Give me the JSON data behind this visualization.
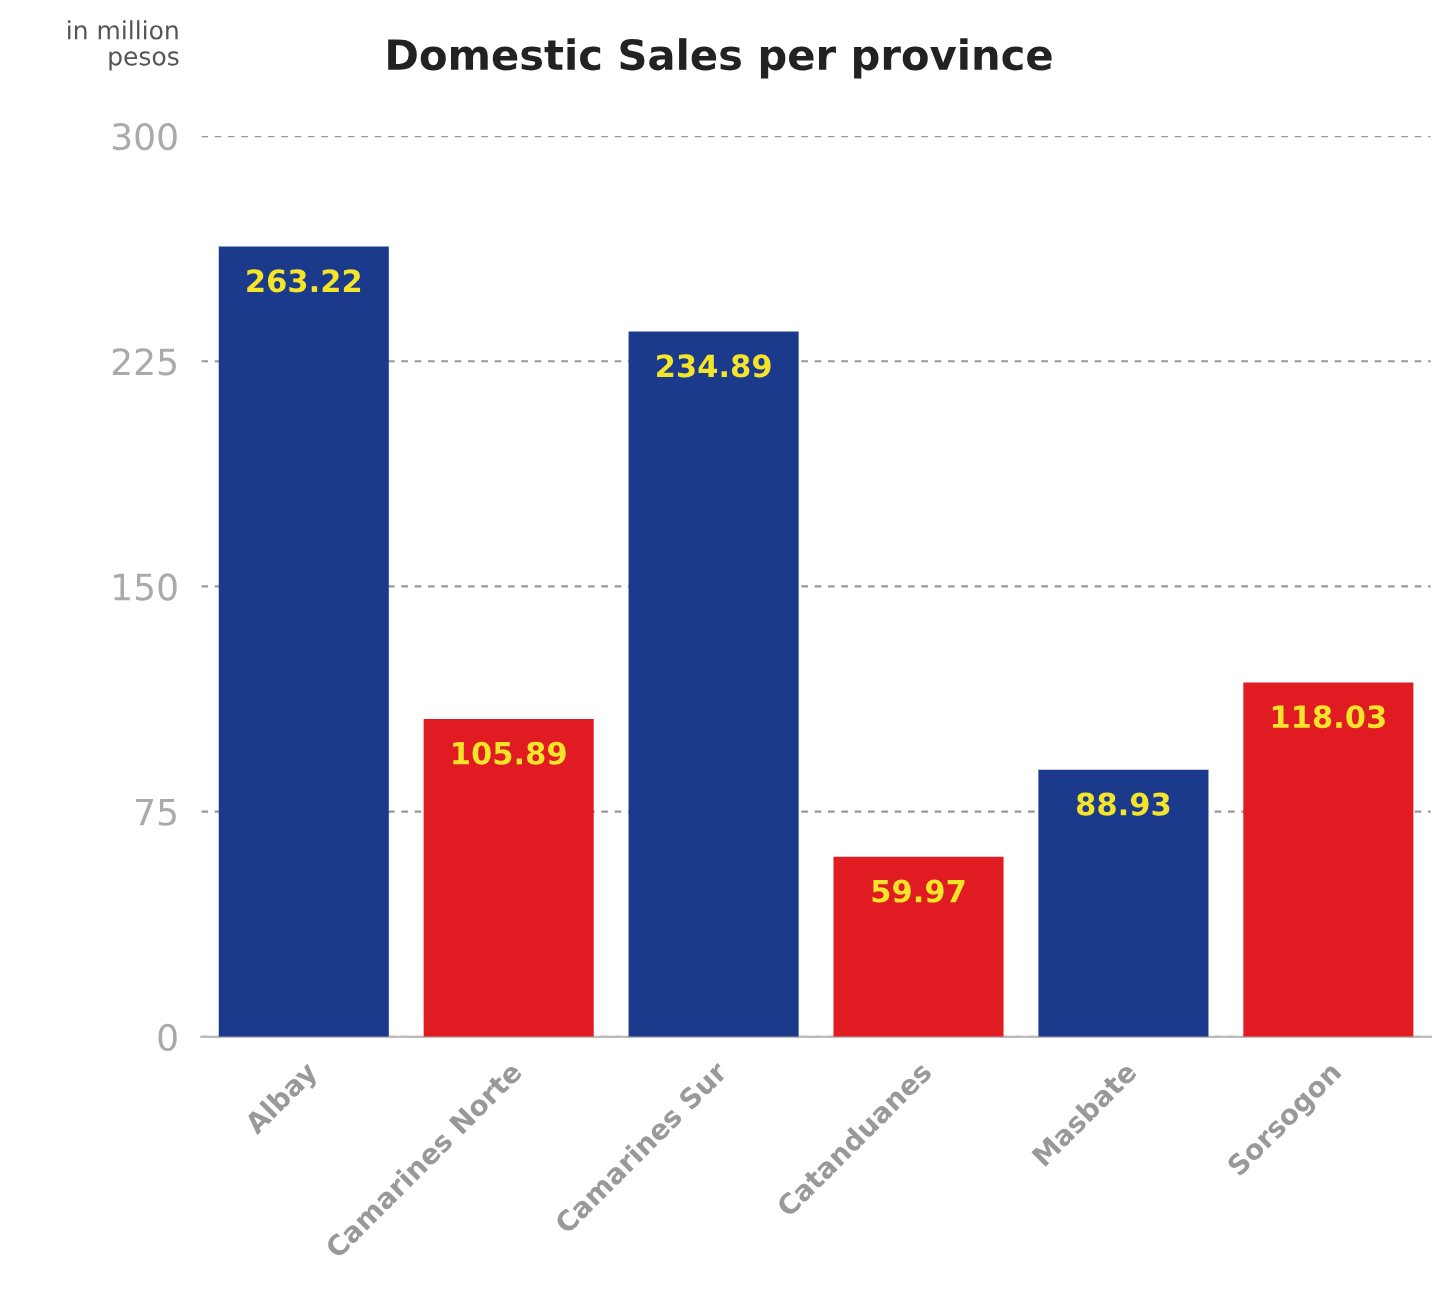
{
  "chart_data": {
    "type": "bar",
    "title": "Domestic Sales per province",
    "ylabel": "in million\npesos",
    "categories": [
      "Albay",
      "Camarines Norte",
      "Camarines Sur",
      "Catanduanes",
      "Masbate",
      "Sorsogon"
    ],
    "values": [
      263.22,
      105.89,
      234.89,
      59.97,
      88.93,
      118.03
    ],
    "colors": [
      "#1c3a8c",
      "#e01c22",
      "#1c3a8c",
      "#e01c22",
      "#1c3a8c",
      "#e01c22"
    ],
    "ylim": [
      0,
      300
    ],
    "yticks": [
      0,
      75,
      150,
      225,
      300
    ],
    "grid": "y",
    "data_labels": true
  }
}
